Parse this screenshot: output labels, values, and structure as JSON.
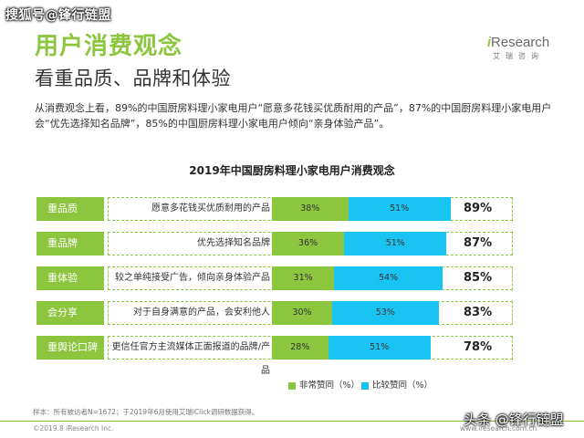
{
  "watermark_top": "搜狐号@锋行链盟",
  "watermark_bottom": "头条 @锋行链盟",
  "logo": {
    "i": "i",
    "rest": "Research",
    "sub": "艾瑞咨询"
  },
  "title": "用户消费观念",
  "subtitle": "看重品质、品牌和体验",
  "description": "从消费观念上看，89%的中国厨房料理小家电用户“愿意多花钱买优质耐用的产品”，87%的中国厨房料理小家电用户会“优先选择知名品牌”，85%的中国厨房料理小家电用户倾向“亲身体验产品”。",
  "note": "样本：所有被访者N=1672；于2019年6月使用艾瑞iClick调研数据获得。",
  "copyright": "©2019.8 iResearch Inc.",
  "url": "www.iresearch.com.cn",
  "page_number": "17",
  "colors": {
    "green": "#8cc63f",
    "blue": "#1ac4f2"
  },
  "chart_data": {
    "type": "bar",
    "stacked": true,
    "orientation": "horizontal",
    "title": "2019年中国厨房料理小家电用户消费观念",
    "categories": [
      "重品质",
      "重品牌",
      "重体验",
      "会分享",
      "重舆论口碑"
    ],
    "statements": [
      "愿意多花钱买优质耐用的产品",
      "优先选择知名品牌",
      "较之单纯接受广告，倾向亲身体验产品",
      "对于自身满意的产品，会安利他人",
      "更信任官方主流媒体正面报道的品牌/产品"
    ],
    "series": [
      {
        "name": "非常赞同（%）",
        "values": [
          38,
          36,
          31,
          30,
          28
        ],
        "labels": [
          "38%",
          "36%",
          "31%",
          "30%",
          "28%"
        ],
        "color": "#8cc63f"
      },
      {
        "name": "比较赞同（%）",
        "values": [
          51,
          51,
          54,
          53,
          51
        ],
        "labels": [
          "51%",
          "51%",
          "54%",
          "53%",
          "51%"
        ],
        "color": "#1ac4f2"
      }
    ],
    "totals": [
      "89%",
      "87%",
      "85%",
      "83%",
      "78%"
    ],
    "legend_position": "bottom"
  }
}
